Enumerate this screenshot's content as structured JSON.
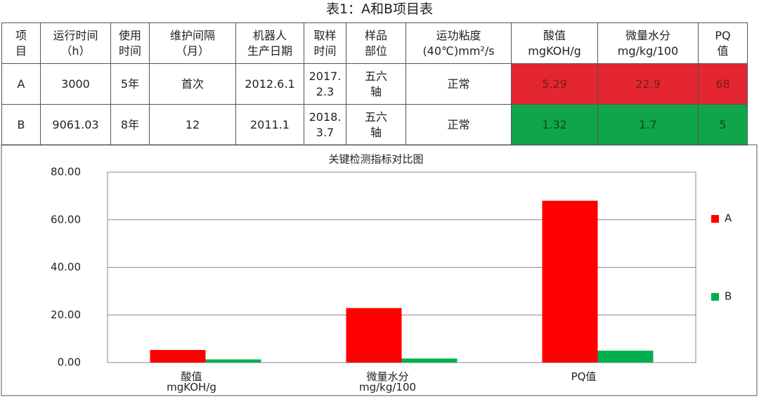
{
  "title": "表1：A和B项目表",
  "table": {
    "header": [
      "项\n目",
      "运行时间\n（h）",
      "使用\n时间",
      "维护间隔\n（月）",
      "机器人\n生产日期",
      "取样\n时间",
      "样品\n部位",
      "运功粘度\n(40℃)mm²/s",
      "酸值\nmgKOH/g",
      "微量水分\nmg/kg/100",
      "PQ\n值"
    ],
    "rows": [
      [
        "A",
        "3000",
        "5年",
        "首次",
        "2012.6.1",
        "2017.\n2.3",
        "五六\n轴",
        "正常",
        "5.29",
        "22.9",
        "68"
      ],
      [
        "B",
        "9061.03",
        "8年",
        "12",
        "2011.1",
        "2018.\n3.7",
        "五六\n轴",
        "正常",
        "1.32",
        "1.7",
        "5"
      ]
    ]
  },
  "chart_data": {
    "type": "bar",
    "title": "关键检测指标对比图",
    "categories": [
      "酸值\nmgKOH/g",
      "微量水分\nmg/kg/100",
      "PQ值"
    ],
    "series": [
      {
        "name": "A",
        "color": "#ff0000",
        "values": [
          5.29,
          22.9,
          68
        ]
      },
      {
        "name": "B",
        "color": "#00b050",
        "values": [
          1.32,
          1.7,
          5
        ]
      }
    ],
    "ylim": [
      0,
      80
    ],
    "yticks": [
      {
        "value": 0,
        "label": "0.00"
      },
      {
        "value": 20,
        "label": "20.00"
      },
      {
        "value": 40,
        "label": "40.00"
      },
      {
        "value": 60,
        "label": "60.00"
      },
      {
        "value": 80,
        "label": "80.00"
      }
    ],
    "grid": true,
    "legend": "right"
  }
}
